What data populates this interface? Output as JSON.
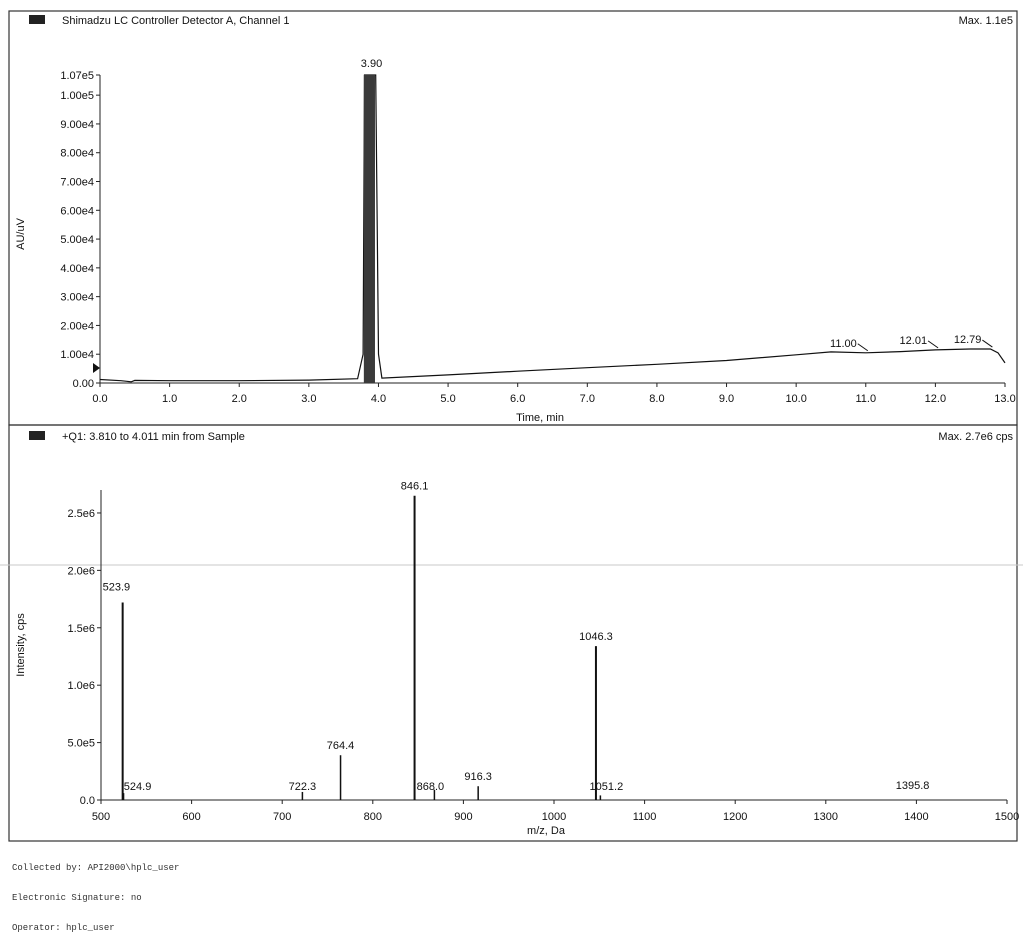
{
  "colors": {
    "ink": "#111111",
    "frame": "#333333",
    "legend_box": "#222222",
    "scan_line": "#c8c8c8"
  },
  "chart_data": [
    {
      "type": "line",
      "title": "Shimadzu LC Controller Detector A, Channel 1",
      "max_label": "Max. 1.1e5",
      "xlabel": "Time, min",
      "ylabel": "AU/uV",
      "xlim": [
        0.0,
        13.0
      ],
      "ylim": [
        0,
        107000
      ],
      "x_ticks": [
        "0.0",
        "1.0",
        "2.0",
        "3.0",
        "4.0",
        "5.0",
        "6.0",
        "7.0",
        "8.0",
        "9.0",
        "10.0",
        "11.0",
        "12.0",
        "13.0"
      ],
      "y_ticks": [
        "0.00",
        "1.00e4",
        "2.00e4",
        "3.00e4",
        "4.00e4",
        "5.00e4",
        "6.00e4",
        "7.00e4",
        "8.00e4",
        "9.00e4",
        "1.00e5",
        "1.07e5"
      ],
      "series": [
        {
          "x": [
            0.0,
            0.3,
            0.45,
            0.5,
            1.0,
            2.0,
            3.0,
            3.7,
            3.78,
            3.8,
            3.9,
            3.96,
            4.0,
            4.05,
            5.0,
            6.0,
            7.0,
            8.0,
            9.0,
            10.0,
            10.5,
            11.0,
            11.5,
            12.0,
            12.5,
            12.79,
            12.9,
            13.0
          ],
          "y": [
            1200,
            800,
            400,
            900,
            800,
            800,
            1000,
            1500,
            10000,
            107000,
            107000,
            107000,
            10000,
            1700,
            2800,
            4100,
            5300,
            6500,
            7800,
            9800,
            10800,
            10500,
            10900,
            11500,
            11800,
            11800,
            10500,
            7000
          ]
        }
      ],
      "peak_labels": [
        {
          "x": 3.9,
          "text": "3.90"
        },
        {
          "x": 11.0,
          "text": "11.00"
        },
        {
          "x": 12.01,
          "text": "12.01"
        },
        {
          "x": 12.79,
          "text": "12.79"
        }
      ]
    },
    {
      "type": "bar",
      "title": "+Q1: 3.810 to 4.011 min from Sample",
      "max_label": "Max. 2.7e6 cps",
      "xlabel": "m/z, Da",
      "ylabel": "Intensity, cps",
      "xlim": [
        500,
        1500
      ],
      "ylim": [
        0,
        2700000
      ],
      "x_ticks": [
        "500",
        "600",
        "700",
        "800",
        "900",
        "1000",
        "1100",
        "1200",
        "1300",
        "1400",
        "1500"
      ],
      "y_ticks": [
        "0.0",
        "5.0e5",
        "1.0e6",
        "1.5e6",
        "2.0e6",
        "2.5e6"
      ],
      "peaks": [
        {
          "x": 523.9,
          "y": 1720000,
          "label": "523.9"
        },
        {
          "x": 524.9,
          "y": 60000,
          "label": "524.9"
        },
        {
          "x": 722.3,
          "y": 70000,
          "label": "722.3"
        },
        {
          "x": 764.4,
          "y": 390000,
          "label": "764.4"
        },
        {
          "x": 846.1,
          "y": 2650000,
          "label": "846.1"
        },
        {
          "x": 868.0,
          "y": 90000,
          "label": "868.0"
        },
        {
          "x": 916.3,
          "y": 120000,
          "label": "916.3"
        },
        {
          "x": 1046.3,
          "y": 1340000,
          "label": "1046.3"
        },
        {
          "x": 1051.2,
          "y": 40000,
          "label": "1051.2"
        },
        {
          "x": 1395.8,
          "y": 0,
          "label": "1395.8"
        }
      ]
    }
  ],
  "footer": {
    "collected_by": "Collected by: API2000\\hplc_user",
    "signature": "Electronic Signature: no",
    "operator": "Operator: hplc_user"
  }
}
